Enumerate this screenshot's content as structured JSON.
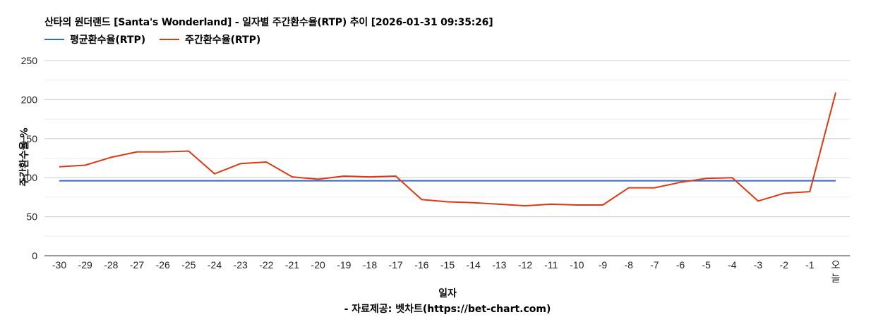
{
  "title": "산타의 원더랜드 [Santa's Wonderland] - 일자별 주간환수율(RTP) 추이 [2026-01-31 09:35:26]",
  "legend": [
    {
      "label": "평균환수율(RTP)",
      "color": "#3366cc"
    },
    {
      "label": "주간환수율(RTP)",
      "color": "#dc3912"
    }
  ],
  "axes": {
    "xlabel": "일자",
    "ylabel": "주간환수율 %",
    "yticks": [
      "0",
      "50",
      "100",
      "150",
      "200",
      "250"
    ]
  },
  "source": "- 자료제공: 벳차트(https://bet-chart.com)",
  "chart_data": {
    "type": "line",
    "title": "산타의 원더랜드 [Santa's Wonderland] - 일자별 주간환수율(RTP) 추이 [2026-01-31 09:35:26]",
    "xlabel": "일자",
    "ylabel": "주간환수율 %",
    "ylim": [
      0,
      250
    ],
    "yticks": [
      0,
      50,
      100,
      150,
      200,
      250
    ],
    "grid": true,
    "legend_position": "top-left",
    "categories": [
      "-30",
      "-29",
      "-28",
      "-27",
      "-26",
      "-25",
      "-24",
      "-23",
      "-22",
      "-21",
      "-20",
      "-19",
      "-18",
      "-17",
      "-16",
      "-15",
      "-14",
      "-13",
      "-12",
      "-11",
      "-10",
      "-9",
      "-8",
      "-7",
      "-6",
      "-5",
      "-4",
      "-3",
      "-2",
      "-1",
      "오늘"
    ],
    "series": [
      {
        "name": "평균환수율(RTP)",
        "color": "#3366cc",
        "values": [
          96,
          96,
          96,
          96,
          96,
          96,
          96,
          96,
          96,
          96,
          96,
          96,
          96,
          96,
          96,
          96,
          96,
          96,
          96,
          96,
          96,
          96,
          96,
          96,
          96,
          96,
          96,
          96,
          96,
          96,
          96
        ]
      },
      {
        "name": "주간환수율(RTP)",
        "color": "#dc3912",
        "values": [
          114,
          116,
          126,
          133,
          133,
          134,
          105,
          118,
          120,
          101,
          98,
          102,
          101,
          102,
          72,
          69,
          68,
          66,
          64,
          66,
          65,
          65,
          87,
          87,
          94,
          99,
          100,
          70,
          80,
          82,
          209
        ]
      }
    ]
  }
}
